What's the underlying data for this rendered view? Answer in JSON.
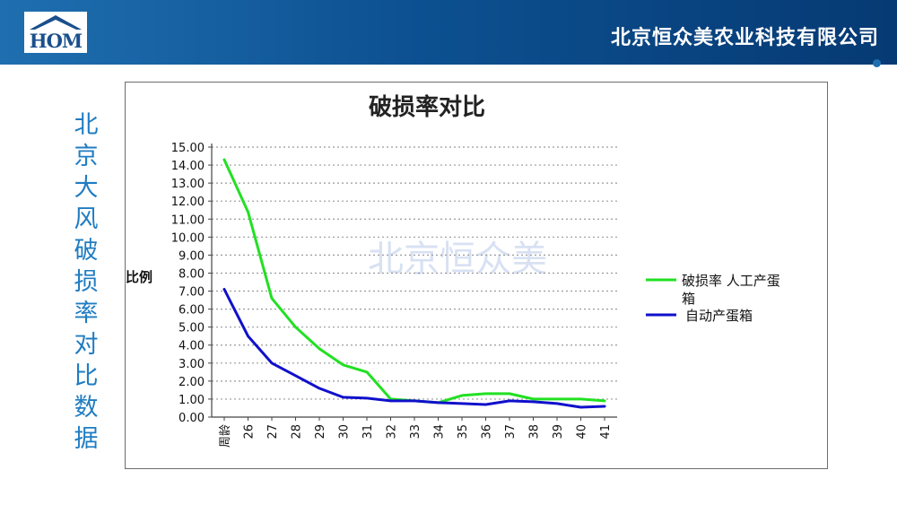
{
  "header": {
    "logo_text": "HOM",
    "company_name": "北京恒众美农业科技有限公司"
  },
  "side_title": [
    "北",
    "京",
    "大",
    "风",
    "破",
    "损",
    "率",
    "对",
    "比",
    "数",
    "据"
  ],
  "colors": {
    "header_dark": "#063a73",
    "side_title": "#1f7cc2",
    "series_manual": "#22e022",
    "series_auto": "#1010cc"
  },
  "chart_data": {
    "type": "line",
    "title": "破损率对比",
    "ylabel": "比例",
    "xlabel": "",
    "watermark": "北京恒众美",
    "categories": [
      "周龄",
      "26",
      "27",
      "28",
      "29",
      "30",
      "31",
      "32",
      "33",
      "34",
      "35",
      "36",
      "37",
      "38",
      "39",
      "40",
      "41"
    ],
    "ylim": [
      0,
      15
    ],
    "yticks": [
      "0.00",
      "1.00",
      "2.00",
      "3.00",
      "4.00",
      "5.00",
      "6.00",
      "7.00",
      "8.00",
      "9.00",
      "10.00",
      "11.00",
      "12.00",
      "13.00",
      "14.00",
      "15.00"
    ],
    "grid": true,
    "legend_position": "right",
    "series": [
      {
        "name": "破损率 人工产蛋箱",
        "color": "#22e022",
        "values": [
          14.3,
          11.4,
          6.6,
          5.0,
          3.8,
          2.9,
          2.5,
          1.0,
          0.9,
          0.8,
          1.2,
          1.3,
          1.3,
          1.0,
          1.0,
          1.0,
          0.9
        ]
      },
      {
        "name": "自动产蛋箱",
        "color": "#1010cc",
        "values": [
          7.1,
          4.5,
          3.0,
          2.3,
          1.6,
          1.1,
          1.05,
          0.9,
          0.9,
          0.8,
          0.75,
          0.7,
          0.9,
          0.85,
          0.75,
          0.55,
          0.6
        ]
      }
    ]
  }
}
